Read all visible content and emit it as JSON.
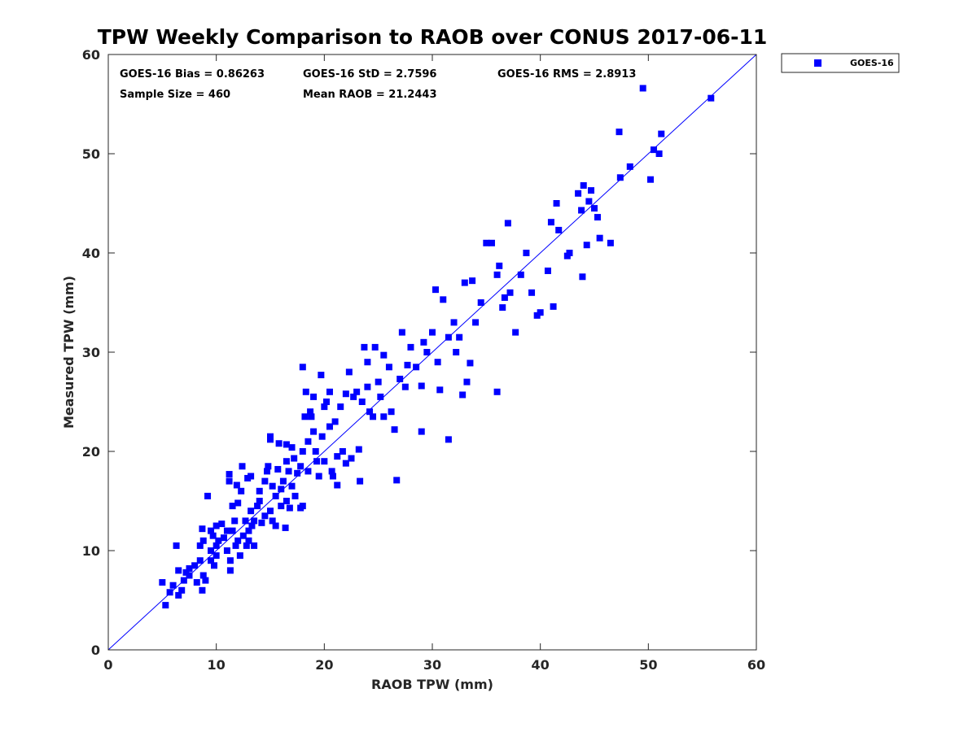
{
  "chart_data": {
    "type": "scatter",
    "title": "TPW Weekly Comparison to RAOB over CONUS 2017-06-11",
    "xlabel": "RAOB TPW (mm)",
    "ylabel": "Measured TPW (mm)",
    "xlim": [
      0,
      60
    ],
    "ylim": [
      0,
      60
    ],
    "xticks": [
      "0",
      "10",
      "20",
      "30",
      "40",
      "50",
      "60"
    ],
    "yticks": [
      "0",
      "10",
      "20",
      "30",
      "40",
      "50",
      "60"
    ],
    "grid": false,
    "legend_position": "outside-top-right",
    "reference_line": {
      "name": "1:1 line",
      "color": "#0000ff",
      "from": [
        0,
        0
      ],
      "to": [
        60,
        60
      ]
    },
    "stats": {
      "bias": "GOES-16 Bias = 0.86263",
      "std": "GOES-16 StD = 2.7596",
      "rms": "GOES-16 RMS = 2.8913",
      "sample_size": "Sample Size = 460",
      "mean_raob": "Mean RAOB = 21.2443"
    },
    "series": [
      {
        "name": "GOES-16",
        "color": "#0000ff",
        "marker": "square",
        "points": [
          [
            5.0,
            6.8
          ],
          [
            5.3,
            4.5
          ],
          [
            5.7,
            5.8
          ],
          [
            6.0,
            6.5
          ],
          [
            6.3,
            10.5
          ],
          [
            6.5,
            8.0
          ],
          [
            6.5,
            5.5
          ],
          [
            6.8,
            6.0
          ],
          [
            7.0,
            7.0
          ],
          [
            7.2,
            7.8
          ],
          [
            7.5,
            8.2
          ],
          [
            7.5,
            7.5
          ],
          [
            8.0,
            8.5
          ],
          [
            8.2,
            6.8
          ],
          [
            8.5,
            9.0
          ],
          [
            8.5,
            10.5
          ],
          [
            8.7,
            12.2
          ],
          [
            8.8,
            11.0
          ],
          [
            8.8,
            7.5
          ],
          [
            9.0,
            7.0
          ],
          [
            8.7,
            6.0
          ],
          [
            9.2,
            15.5
          ],
          [
            9.5,
            12.0
          ],
          [
            9.5,
            10.0
          ],
          [
            9.5,
            9.0
          ],
          [
            9.7,
            11.5
          ],
          [
            9.8,
            8.5
          ],
          [
            10.0,
            10.5
          ],
          [
            10.0,
            12.5
          ],
          [
            10.0,
            9.5
          ],
          [
            10.2,
            11.0
          ],
          [
            10.5,
            12.7
          ],
          [
            10.7,
            11.3
          ],
          [
            11.0,
            12.0
          ],
          [
            11.0,
            10.0
          ],
          [
            11.2,
            17.7
          ],
          [
            11.2,
            17.0
          ],
          [
            11.3,
            9.0
          ],
          [
            11.3,
            8.0
          ],
          [
            11.5,
            14.5
          ],
          [
            11.5,
            12.0
          ],
          [
            11.7,
            13.0
          ],
          [
            11.8,
            10.5
          ],
          [
            11.9,
            16.6
          ],
          [
            12.0,
            11.0
          ],
          [
            12.0,
            14.8
          ],
          [
            12.2,
            9.5
          ],
          [
            12.3,
            16.0
          ],
          [
            12.4,
            18.5
          ],
          [
            12.5,
            11.5
          ],
          [
            12.7,
            13.0
          ],
          [
            12.8,
            10.5
          ],
          [
            12.9,
            17.3
          ],
          [
            13.0,
            12.0
          ],
          [
            13.0,
            11.0
          ],
          [
            13.2,
            14.0
          ],
          [
            13.2,
            17.5
          ],
          [
            13.3,
            12.5
          ],
          [
            13.5,
            10.5
          ],
          [
            13.5,
            13.0
          ],
          [
            13.8,
            14.5
          ],
          [
            14.0,
            15.0
          ],
          [
            14.0,
            16.0
          ],
          [
            14.2,
            12.8
          ],
          [
            14.5,
            13.5
          ],
          [
            14.5,
            17.0
          ],
          [
            14.7,
            18.0
          ],
          [
            14.8,
            18.5
          ],
          [
            15.0,
            21.2
          ],
          [
            15.0,
            21.5
          ],
          [
            15.0,
            14.0
          ],
          [
            15.2,
            13.0
          ],
          [
            15.2,
            16.5
          ],
          [
            15.5,
            15.5
          ],
          [
            15.5,
            12.5
          ],
          [
            15.7,
            18.2
          ],
          [
            15.8,
            20.8
          ],
          [
            16.0,
            14.5
          ],
          [
            16.0,
            16.2
          ],
          [
            16.2,
            17.0
          ],
          [
            16.4,
            12.3
          ],
          [
            16.5,
            20.7
          ],
          [
            16.5,
            19.0
          ],
          [
            16.5,
            15.0
          ],
          [
            16.7,
            18.0
          ],
          [
            16.8,
            14.3
          ],
          [
            17.0,
            20.4
          ],
          [
            17.0,
            16.5
          ],
          [
            17.2,
            19.3
          ],
          [
            17.3,
            15.5
          ],
          [
            17.5,
            17.8
          ],
          [
            17.8,
            18.5
          ],
          [
            17.8,
            14.3
          ],
          [
            18.0,
            28.5
          ],
          [
            18.0,
            20.0
          ],
          [
            18.0,
            14.5
          ],
          [
            18.2,
            23.5
          ],
          [
            18.3,
            26.0
          ],
          [
            18.5,
            21.0
          ],
          [
            18.5,
            18.0
          ],
          [
            18.7,
            24.0
          ],
          [
            18.8,
            23.5
          ],
          [
            19.0,
            25.5
          ],
          [
            19.0,
            22.0
          ],
          [
            19.2,
            20.0
          ],
          [
            19.3,
            19.0
          ],
          [
            19.5,
            17.5
          ],
          [
            19.7,
            27.7
          ],
          [
            19.8,
            21.5
          ],
          [
            20.0,
            24.5
          ],
          [
            20.0,
            19.0
          ],
          [
            20.2,
            25.0
          ],
          [
            20.5,
            26.0
          ],
          [
            20.5,
            22.5
          ],
          [
            20.7,
            18.0
          ],
          [
            20.8,
            17.5
          ],
          [
            21.0,
            23.0
          ],
          [
            21.2,
            19.5
          ],
          [
            21.2,
            16.6
          ],
          [
            21.5,
            24.5
          ],
          [
            21.7,
            20.0
          ],
          [
            22.0,
            25.8
          ],
          [
            22.0,
            18.8
          ],
          [
            22.3,
            28.0
          ],
          [
            22.5,
            19.3
          ],
          [
            22.7,
            25.5
          ],
          [
            23.0,
            26.0
          ],
          [
            23.2,
            20.2
          ],
          [
            23.3,
            17.0
          ],
          [
            23.5,
            25.0
          ],
          [
            23.7,
            30.5
          ],
          [
            24.0,
            29.0
          ],
          [
            24.0,
            26.5
          ],
          [
            24.2,
            24.0
          ],
          [
            24.5,
            23.5
          ],
          [
            24.7,
            30.5
          ],
          [
            25.0,
            27.0
          ],
          [
            25.2,
            25.5
          ],
          [
            25.5,
            23.5
          ],
          [
            25.5,
            29.7
          ],
          [
            26.0,
            28.5
          ],
          [
            26.2,
            24.0
          ],
          [
            26.5,
            22.2
          ],
          [
            26.7,
            17.1
          ],
          [
            27.0,
            27.3
          ],
          [
            27.2,
            32.0
          ],
          [
            27.5,
            26.5
          ],
          [
            27.7,
            28.7
          ],
          [
            28.0,
            30.5
          ],
          [
            28.5,
            28.5
          ],
          [
            29.0,
            22.0
          ],
          [
            29.0,
            26.6
          ],
          [
            29.2,
            31.0
          ],
          [
            29.5,
            30.0
          ],
          [
            30.0,
            32.0
          ],
          [
            30.3,
            36.3
          ],
          [
            30.5,
            29.0
          ],
          [
            30.7,
            26.2
          ],
          [
            31.0,
            35.3
          ],
          [
            31.5,
            31.5
          ],
          [
            31.5,
            21.2
          ],
          [
            32.0,
            33.0
          ],
          [
            32.2,
            30.0
          ],
          [
            32.5,
            31.5
          ],
          [
            32.8,
            25.7
          ],
          [
            33.0,
            37.0
          ],
          [
            33.2,
            27.0
          ],
          [
            33.5,
            28.9
          ],
          [
            33.7,
            37.2
          ],
          [
            34.0,
            33.0
          ],
          [
            34.5,
            35.0
          ],
          [
            35.0,
            41.0
          ],
          [
            35.5,
            41.0
          ],
          [
            36.0,
            37.8
          ],
          [
            36.0,
            26.0
          ],
          [
            36.2,
            38.7
          ],
          [
            36.5,
            34.5
          ],
          [
            36.7,
            35.5
          ],
          [
            37.0,
            43.0
          ],
          [
            37.2,
            36.0
          ],
          [
            37.7,
            32.0
          ],
          [
            38.2,
            37.8
          ],
          [
            38.7,
            40.0
          ],
          [
            39.2,
            36.0
          ],
          [
            39.7,
            33.7
          ],
          [
            40.0,
            34.0
          ],
          [
            40.7,
            38.2
          ],
          [
            41.0,
            43.1
          ],
          [
            41.2,
            34.6
          ],
          [
            41.5,
            45.0
          ],
          [
            41.7,
            42.3
          ],
          [
            42.5,
            39.7
          ],
          [
            42.7,
            40.0
          ],
          [
            43.5,
            46.0
          ],
          [
            43.8,
            44.3
          ],
          [
            43.9,
            37.6
          ],
          [
            44.0,
            46.8
          ],
          [
            44.3,
            40.8
          ],
          [
            44.5,
            45.2
          ],
          [
            44.7,
            46.3
          ],
          [
            45.0,
            44.5
          ],
          [
            45.3,
            43.6
          ],
          [
            45.5,
            41.5
          ],
          [
            46.5,
            41.0
          ],
          [
            47.3,
            52.2
          ],
          [
            47.4,
            47.6
          ],
          [
            48.3,
            48.7
          ],
          [
            49.5,
            56.6
          ],
          [
            50.2,
            47.4
          ],
          [
            50.5,
            50.4
          ],
          [
            51.0,
            50.0
          ],
          [
            51.2,
            52.0
          ],
          [
            55.8,
            55.6
          ]
        ]
      }
    ]
  }
}
